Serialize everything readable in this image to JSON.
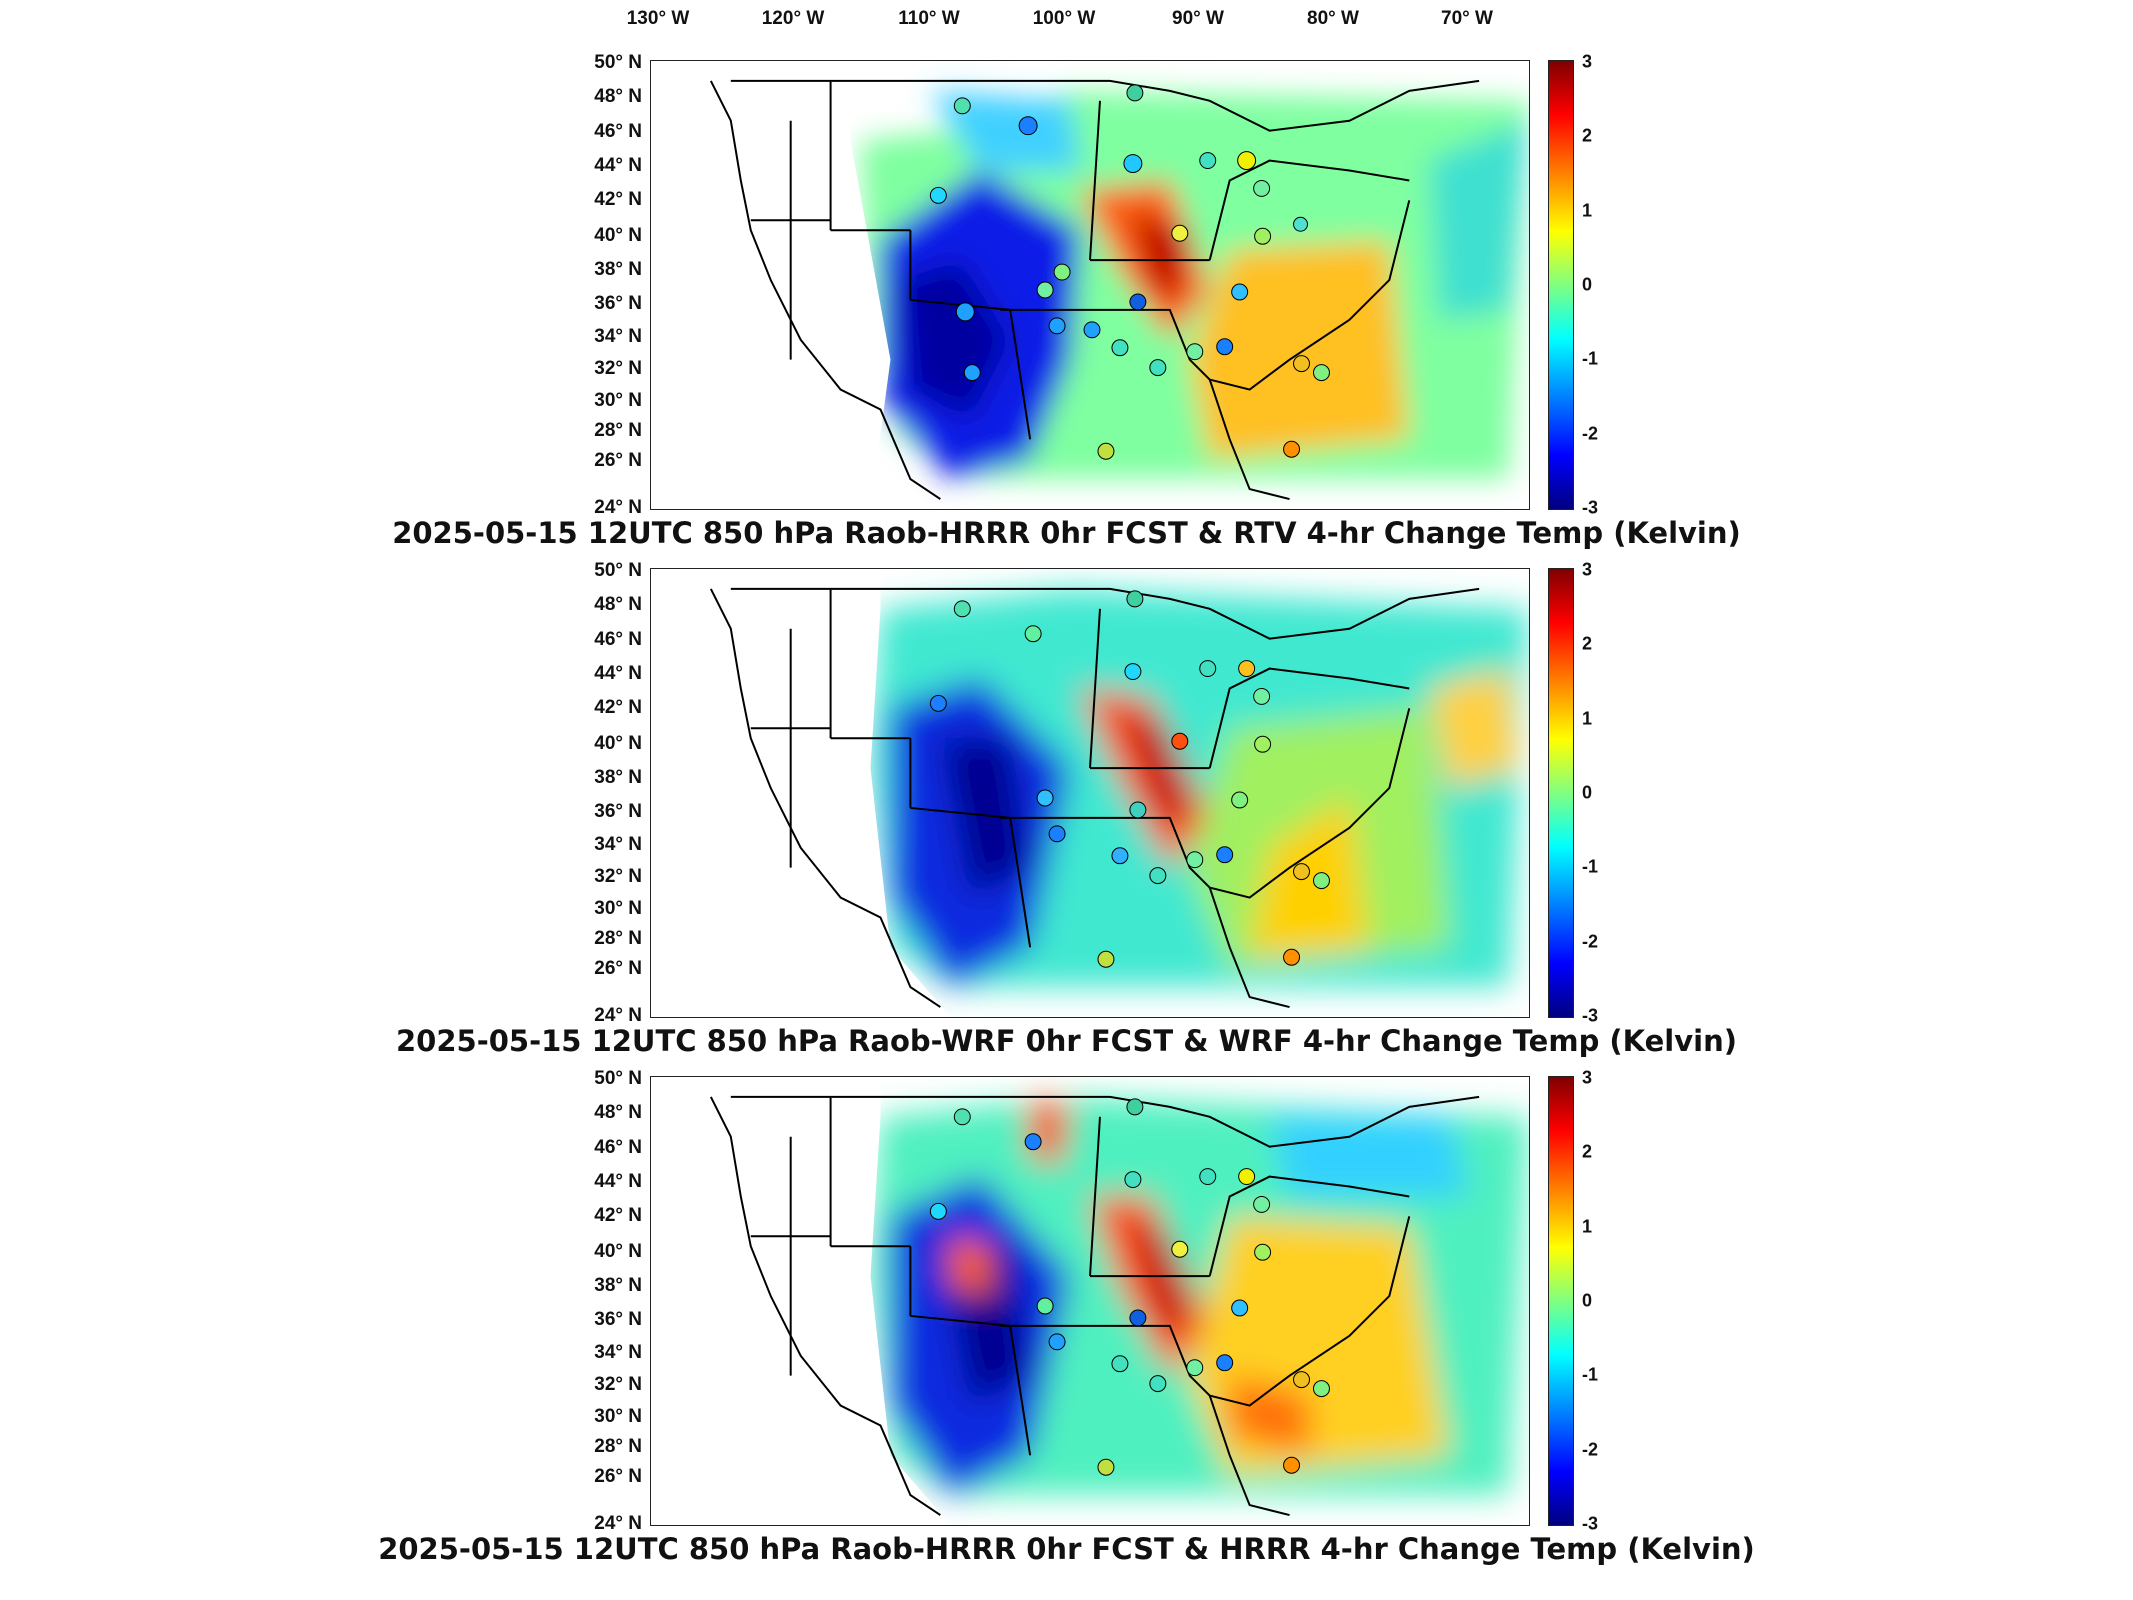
{
  "lon_ticks": [
    "130° W",
    "120° W",
    "110° W",
    "100° W",
    "90° W",
    "80° W",
    "70° W"
  ],
  "lat_ticks": [
    "50° N",
    "48° N",
    "46° N",
    "44° N",
    "42° N",
    "40° N",
    "38° N",
    "36° N",
    "34° N",
    "32° N",
    "30° N",
    "28° N",
    "26° N",
    "24° N"
  ],
  "colorbar": {
    "ticks": [
      "3",
      "2",
      "1",
      "0",
      "-1",
      "-2",
      "-3"
    ],
    "range": [
      -3,
      3
    ]
  },
  "panels": [
    {
      "title": "2025-05-15 12UTC 850 hPa Raob-HRRR 0hr FCST & RTV 4-hr Change Temp (Kelvin)"
    },
    {
      "title": "2025-05-15 12UTC 850 hPa Raob-WRF 0hr FCST & WRF 4-hr Change Temp (Kelvin)"
    },
    {
      "title": "2025-05-15 12UTC 850 hPa Raob-HRRR 0hr FCST & HRRR 4-hr Change Temp (Kelvin)"
    }
  ]
}
